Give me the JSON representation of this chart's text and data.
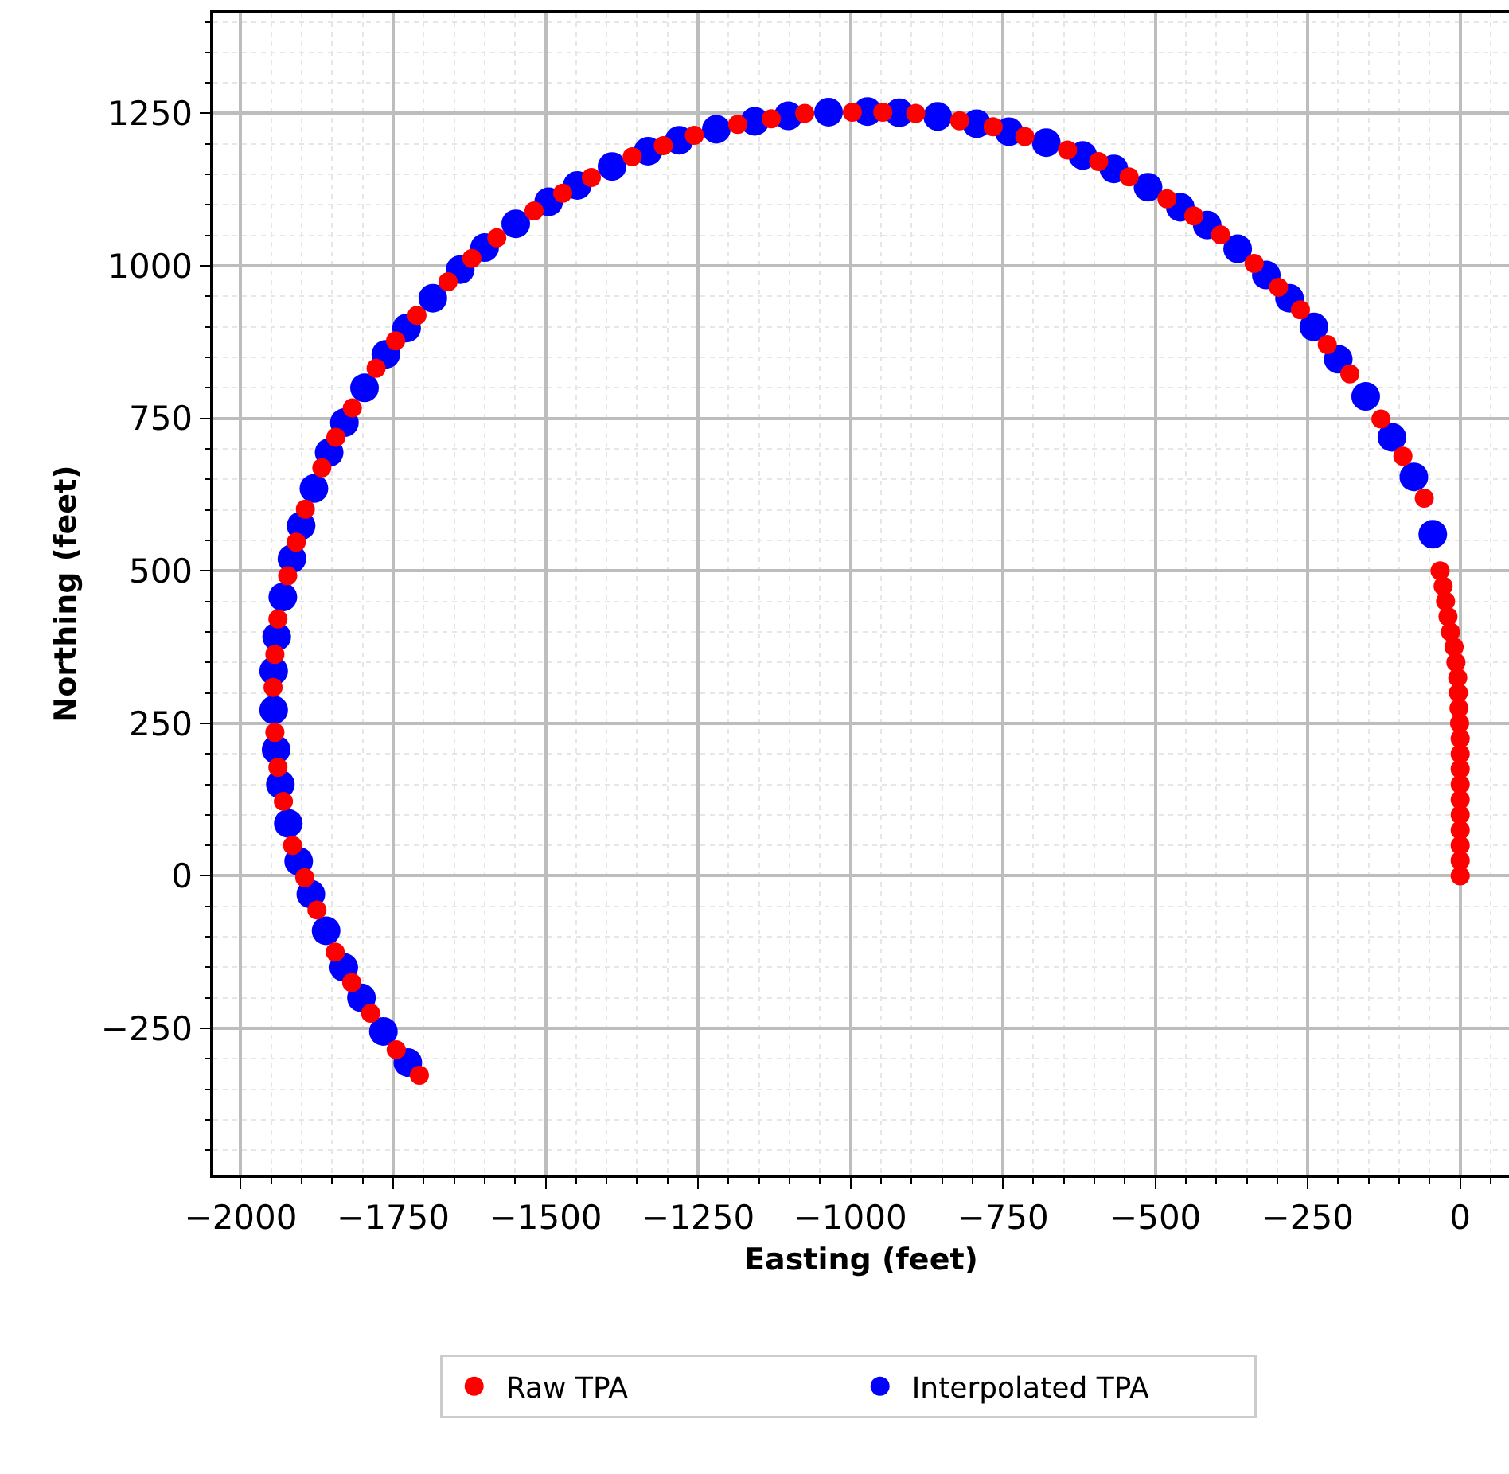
{
  "chart_data": {
    "type": "scatter",
    "xlabel": "Easting (feet)",
    "ylabel": "Northing (feet)",
    "xlim": [
      -2045,
      80
    ],
    "ylim": [
      -490,
      1415
    ],
    "xticks": [
      -2000,
      -1750,
      -1500,
      -1250,
      -1000,
      -750,
      -500,
      -250,
      0
    ],
    "yticks": [
      -250,
      0,
      250,
      500,
      750,
      1000,
      1250
    ],
    "grid": true,
    "legend": "bottom",
    "marker": "circle",
    "series": [
      {
        "name": "Interpolated TPA",
        "color": "#0000ff",
        "x": [
          -45,
          -76,
          -112,
          -155,
          -200,
          -240,
          -280,
          -318,
          -365,
          -415,
          -459,
          -512,
          -568,
          -619,
          -679,
          -740,
          -793,
          -857,
          -920,
          -972,
          -1036,
          -1102,
          -1157,
          -1220,
          -1281,
          -1332,
          -1391,
          -1448,
          -1495,
          -1549,
          -1600,
          -1640,
          -1685,
          -1728,
          -1762,
          -1797,
          -1830,
          -1855,
          -1880,
          -1901,
          -1916,
          -1931,
          -1941,
          -1946,
          -1946,
          -1942,
          -1935,
          -1922,
          -1905,
          -1885,
          -1860,
          -1831,
          -1802,
          -1766,
          -1726
        ],
        "values": [
          560,
          654,
          719,
          786,
          847,
          900,
          947,
          985,
          1028,
          1067,
          1096,
          1129,
          1159,
          1181,
          1202,
          1220,
          1233,
          1245,
          1251,
          1253,
          1252,
          1246,
          1237,
          1224,
          1206,
          1188,
          1163,
          1132,
          1105,
          1069,
          1030,
          994,
          947,
          898,
          855,
          800,
          743,
          694,
          635,
          574,
          520,
          457,
          392,
          336,
          272,
          207,
          150,
          86,
          24,
          -30,
          -90,
          -150,
          -200,
          -255,
          -306
        ]
      },
      {
        "name": "Raw TPA",
        "color": "#ff0000",
        "x": [
          0,
          0,
          0,
          0,
          0,
          0,
          0,
          0,
          0,
          0,
          -1,
          -2,
          -3,
          -4,
          -7,
          -10,
          -16,
          -20,
          -24,
          -28,
          -33,
          -59,
          -94,
          -130,
          -181,
          -218,
          -262,
          -298,
          -338,
          -393,
          -437,
          -481,
          -543,
          -593,
          -644,
          -714,
          -766,
          -821,
          -893,
          -947,
          -997,
          -1075,
          -1130,
          -1185,
          -1256,
          -1307,
          -1358,
          -1425,
          -1472,
          -1519,
          -1580,
          -1621,
          -1660,
          -1711,
          -1746,
          -1778,
          -1817,
          -1844,
          -1867,
          -1894,
          -1909,
          -1923,
          -1939,
          -1944,
          -1947,
          -1944,
          -1939,
          -1930,
          -1915,
          -1895,
          -1875,
          -1845,
          -1818,
          -1787,
          -1745,
          -1707
        ],
        "values": [
          0,
          25,
          50,
          75,
          100,
          125,
          150,
          175,
          200,
          225,
          250,
          275,
          300,
          325,
          350,
          375,
          400,
          425,
          450,
          475,
          500,
          619,
          688,
          749,
          823,
          871,
          928,
          965,
          1004,
          1051,
          1082,
          1110,
          1146,
          1171,
          1190,
          1212,
          1228,
          1238,
          1250,
          1252,
          1252,
          1250,
          1241,
          1232,
          1214,
          1197,
          1179,
          1145,
          1119,
          1090,
          1046,
          1012,
          974,
          919,
          877,
          832,
          767,
          719,
          669,
          601,
          547,
          492,
          421,
          363,
          309,
          235,
          178,
          122,
          50,
          -3,
          -56,
          -125,
          -175,
          -225,
          -285,
          -327
        ]
      }
    ]
  }
}
